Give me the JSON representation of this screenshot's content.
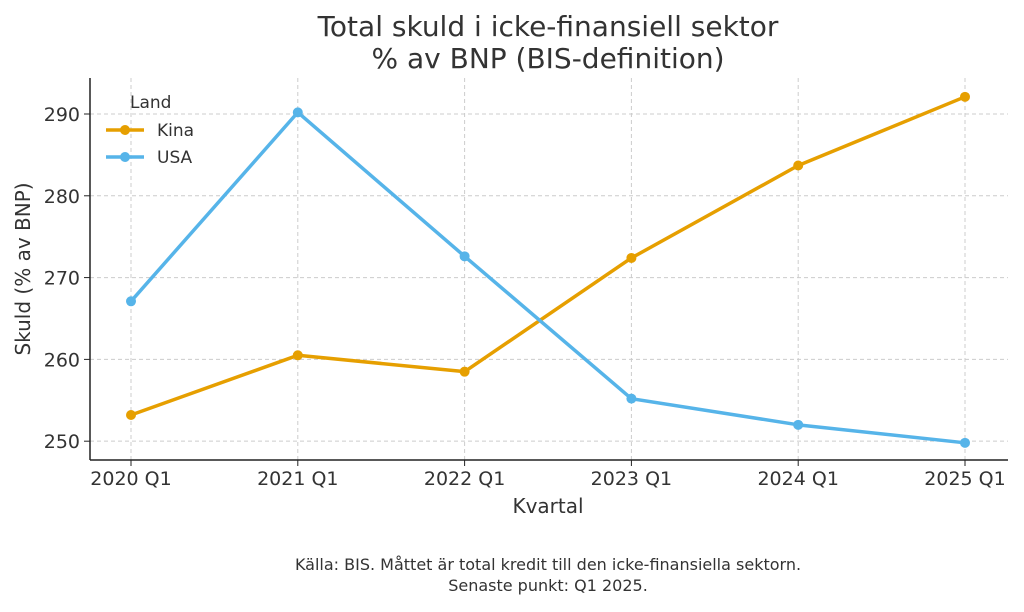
{
  "chart_data": {
    "type": "line",
    "title_line1": "Total skuld i icke-finansiell sektor",
    "title_line2": "% av BNP (BIS-definition)",
    "xlabel": "Kvartal",
    "ylabel": "Skuld (% av BNP)",
    "categories": [
      "2020 Q1",
      "2021 Q1",
      "2022 Q1",
      "2023 Q1",
      "2024 Q1",
      "2025 Q1"
    ],
    "yticks": [
      250,
      260,
      270,
      280,
      290
    ],
    "ylim": [
      247.7,
      294.4
    ],
    "grid": true,
    "legend": {
      "title": "Land",
      "placement": "top-left"
    },
    "series": [
      {
        "name": "Kina",
        "color": "#E69F00",
        "values": [
          253.2,
          260.5,
          258.5,
          272.4,
          283.7,
          292.1
        ]
      },
      {
        "name": "USA",
        "color": "#56B4E9",
        "values": [
          267.1,
          290.2,
          272.6,
          255.2,
          252.0,
          249.8
        ]
      }
    ],
    "footnote_line1": "Källa: BIS. Måttet är total kredit till den icke-finansiella sektorn.",
    "footnote_line2": "Senaste punkt: Q1 2025."
  }
}
